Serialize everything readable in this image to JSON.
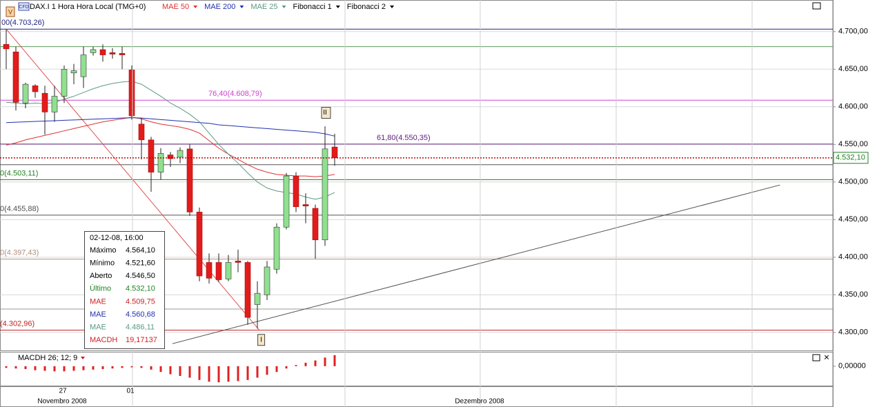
{
  "chart_data": [
    {
      "type": "candlestick",
      "title": "DAX.I 1 Hora Hora Local (TMG+0)",
      "badge": "CFD",
      "flag": "V",
      "categories": [
        null,
        null,
        null,
        null,
        null,
        null,
        "27",
        null,
        null,
        null,
        null,
        null,
        null,
        "01",
        null,
        null,
        null,
        null,
        null,
        null,
        null,
        null,
        null,
        null,
        null,
        null,
        null,
        null,
        null,
        null,
        null,
        null,
        null,
        null,
        null
      ],
      "months": [
        "Novembro 2008",
        "Dezembro 2008"
      ],
      "open": [
        4683,
        4673,
        4605,
        4628,
        4618,
        4593,
        4614,
        4645,
        4640,
        4672,
        4676,
        4672,
        4671,
        4649,
        4577,
        4556,
        4513,
        4536,
        4533,
        4544,
        4460,
        4393,
        4393,
        4371,
        4395,
        4393,
        4337,
        4350,
        4384,
        4440,
        4508,
        4470,
        4465,
        4423,
        4546.5
      ],
      "high": [
        4703,
        4680,
        4632,
        4630,
        4628,
        4628,
        4655,
        4657,
        4680,
        4680,
        4683,
        4678,
        4680,
        4655,
        4585,
        4560,
        4545,
        4540,
        4546,
        4550,
        4466,
        4405,
        4405,
        4403,
        4410,
        4395,
        4368,
        4395,
        4445,
        4512,
        4513,
        4485,
        4470,
        4574,
        4564.1
      ],
      "low": [
        4650,
        4595,
        4598,
        4612,
        4563,
        4580,
        4605,
        4630,
        4625,
        4668,
        4660,
        4664,
        4650,
        4583,
        4530,
        4487,
        4503,
        4520,
        4525,
        4455,
        4368,
        4365,
        4367,
        4368,
        4380,
        4310,
        4305,
        4343,
        4378,
        4437,
        4460,
        4445,
        4398,
        4415,
        4521.6
      ],
      "close": [
        4677,
        4606,
        4630,
        4620,
        4593,
        4614,
        4650,
        4648,
        4669,
        4676,
        4669,
        4670,
        4669,
        4588,
        4556,
        4513,
        4538,
        4531,
        4542,
        4460,
        4375,
        4372,
        4370,
        4393,
        4393,
        4320,
        4352,
        4387,
        4440,
        4508,
        4467,
        4468,
        4423,
        4544,
        4532.1
      ],
      "up_color": "#90e090",
      "down_color": "#e31b1b",
      "series": [
        {
          "name": "MAE 50",
          "color": "#e03030",
          "values": [
            4549,
            4552,
            4556,
            4559,
            4562,
            4565,
            4568,
            4571,
            4574,
            4577,
            4580,
            4582,
            4584,
            4586,
            4584,
            4580,
            4577,
            4575,
            4573,
            4570,
            4565,
            4555,
            4545,
            4537,
            4530,
            4523,
            4517,
            4513,
            4510,
            4509,
            4508,
            4508,
            4507,
            4508,
            4510
          ]
        },
        {
          "name": "MAE 200",
          "color": "#2030b0",
          "values": [
            4579,
            4579.5,
            4580,
            4580.5,
            4581,
            4581.5,
            4582,
            4582.5,
            4583,
            4583.5,
            4584,
            4584.5,
            4585,
            4585.5,
            4585,
            4584,
            4583,
            4582,
            4581,
            4580,
            4579,
            4578,
            4576,
            4575,
            4574,
            4573,
            4572,
            4571,
            4570,
            4569,
            4568,
            4567,
            4566,
            4564,
            4561
          ]
        },
        {
          "name": "MAE 25",
          "color": "#5a9a80",
          "values": [
            4606,
            4605,
            4604,
            4605,
            4604,
            4606,
            4610,
            4614,
            4619,
            4624,
            4628,
            4631,
            4633,
            4634,
            4630,
            4622,
            4614,
            4605,
            4598,
            4590,
            4580,
            4565,
            4550,
            4537,
            4525,
            4512,
            4500,
            4492,
            4488,
            4486,
            4484,
            4480,
            4477,
            4480,
            4486
          ]
        }
      ],
      "tools": [
        "Fibonacci 1",
        "Fibonacci 2"
      ],
      "fib_levels": [
        {
          "value": 4703.26,
          "label": "00(4.703,26)",
          "color": "#202080"
        },
        {
          "value": 4608.79,
          "label": "76,40(4.608,79)",
          "color": "#d040d0"
        },
        {
          "value": 4550.35,
          "label": "61,80(4.550,35)",
          "color": "#602080"
        },
        {
          "value": 4503.11,
          "label": "0(4.503,11)",
          "color": "#208020"
        },
        {
          "value": 4455.88,
          "label": "0(4.455,88)",
          "color": "#505050"
        },
        {
          "value": 4397.43,
          "label": "0(4.397,43)",
          "color": "#b09080"
        },
        {
          "value": 4302.96,
          "label": "(4.302,96)",
          "color": "#c02020"
        }
      ],
      "extra_levels": [
        {
          "value": 4680,
          "color": "#5a9a5a"
        },
        {
          "value": 4523,
          "color": "#555555"
        },
        {
          "value": 4331,
          "color": "#999999"
        }
      ],
      "trendlines": [
        {
          "color": "#e05050",
          "x": [
            0,
            26.2
          ],
          "y": [
            4703.26,
            4302.96
          ]
        },
        {
          "color": "#505050",
          "x": [
            17.2,
            80.1
          ],
          "y": [
            4285,
            4496
          ]
        }
      ],
      "annotations": [
        {
          "text": "II",
          "x": 33,
          "y": 4592
        },
        {
          "text": "I",
          "x": 26.4,
          "y": 4290
        }
      ],
      "current": {
        "value": 4532.1,
        "label": "4.532,10",
        "color": "#c00000"
      },
      "ylim": [
        4276,
        4742
      ],
      "yticks": [
        {
          "value": 4300,
          "label": "4.300,00"
        },
        {
          "value": 4350,
          "label": "4.350,00"
        },
        {
          "value": 4400,
          "label": "4.400,00"
        },
        {
          "value": 4450,
          "label": "4.450,00"
        },
        {
          "value": 4500,
          "label": "4.500,00"
        },
        {
          "value": 4550,
          "label": "4.550,00"
        },
        {
          "value": 4600,
          "label": "4.600,00"
        },
        {
          "value": 4650,
          "label": "4.650,00"
        },
        {
          "value": 4700,
          "label": "4.700,00"
        }
      ],
      "grid": true,
      "tooltip": {
        "date": "02-12-08, 16:00",
        "rows": [
          {
            "label": "Máximo",
            "value": "4.564,10",
            "color": "#000000"
          },
          {
            "label": "Mínimo",
            "value": "4.521,60",
            "color": "#000000"
          },
          {
            "label": "Aberto",
            "value": "4.546,50",
            "color": "#000000"
          },
          {
            "label": "Último",
            "value": "4.532,10",
            "color": "#208020"
          },
          {
            "label": "MAE",
            "value": "4.509,75",
            "color": "#d02020"
          },
          {
            "label": "MAE",
            "value": "4.560,68",
            "color": "#2030b0"
          },
          {
            "label": "MAE",
            "value": "4.486,11",
            "color": "#5a9a80"
          },
          {
            "label": "MACDH",
            "value": "19,17137",
            "color": "#d02020"
          }
        ]
      }
    },
    {
      "type": "bar",
      "title": "MACDH 26; 12; 9",
      "color": "#e02020",
      "values": [
        -3,
        -4,
        -5,
        -7,
        -8,
        -9,
        -9,
        -8,
        -7,
        -6,
        -5,
        -4,
        -3,
        -2,
        -3,
        -6,
        -10,
        -14,
        -17,
        -20,
        -24,
        -27,
        -28,
        -27,
        -26,
        -24,
        -20,
        -15,
        -10,
        -4,
        2,
        6,
        10,
        15,
        19.17
      ],
      "ylim": [
        -35,
        25
      ],
      "yticks": [
        {
          "value": 0,
          "label": "0,00000"
        }
      ]
    }
  ]
}
